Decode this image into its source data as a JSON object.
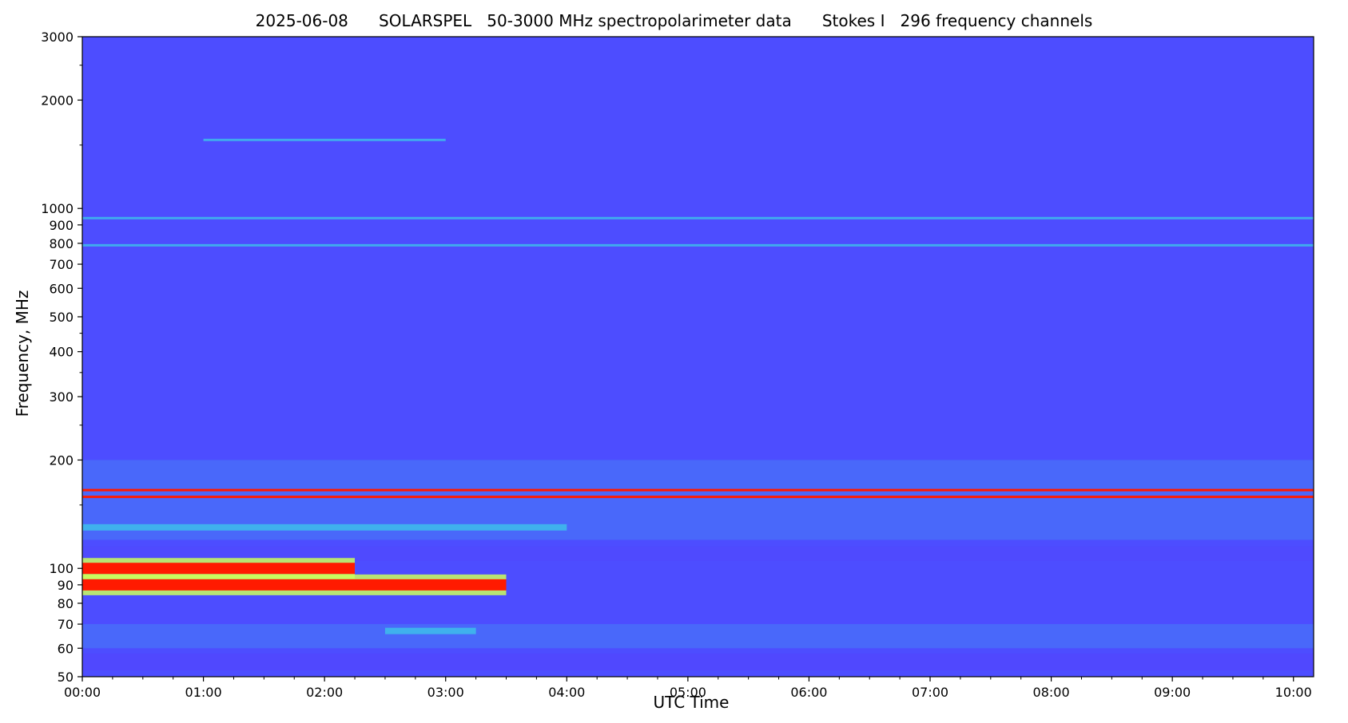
{
  "chart_data": {
    "type": "heatmap",
    "title": "2025-06-08      SOLARSPEL   50-3000 MHz spectropolarimeter data      Stokes I   296 frequency channels",
    "xlabel": "UTC Time",
    "ylabel": "Frequency, MHz",
    "x_ticks": [
      "00:00",
      "01:00",
      "02:00",
      "03:00",
      "04:00",
      "05:00",
      "06:00",
      "07:00",
      "08:00",
      "09:00",
      "10:00"
    ],
    "xlim": [
      "00:00",
      "10:10"
    ],
    "y_scale": "log",
    "ylim": [
      50,
      3000
    ],
    "data_start": "00:00",
    "data_end": "10:10",
    "y_ticks": [
      50,
      60,
      70,
      80,
      90,
      100,
      200,
      300,
      400,
      500,
      600,
      700,
      800,
      900,
      1000,
      2000,
      3000
    ],
    "y_minor_ticks": [
      150,
      250,
      350,
      450,
      1500,
      2500
    ],
    "colormap": "rainbow",
    "colors": {
      "background": "#4d4dff",
      "low": "#5a3dfa",
      "mid": "#3cc9e8",
      "high_mid": "#cbff5a",
      "high": "#ff1a00"
    },
    "features": [
      {
        "description": "persistent narrowband interference",
        "freq_mhz": 165,
        "t_start": "00:00",
        "t_end": "10:10",
        "level": "high"
      },
      {
        "description": "persistent narrowband interference",
        "freq_mhz": 158,
        "t_start": "00:00",
        "t_end": "10:10",
        "level": "high"
      },
      {
        "description": "intense band",
        "freq_mhz": 100,
        "t_start": "00:00",
        "t_end": "02:15",
        "level": "high"
      },
      {
        "description": "intense band",
        "freq_mhz": 90,
        "t_start": "00:00",
        "t_end": "03:30",
        "level": "high"
      },
      {
        "description": "burst patch",
        "freq_mhz": 67,
        "t_start": "02:30",
        "t_end": "03:15",
        "level": "mid"
      },
      {
        "description": "band",
        "freq_mhz": 130,
        "t_start": "00:00",
        "t_end": "04:00",
        "level": "mid"
      },
      {
        "description": "band",
        "freq_mhz": 940,
        "t_start": "00:00",
        "t_end": "10:10",
        "level": "mid"
      },
      {
        "description": "band",
        "freq_mhz": 790,
        "t_start": "00:00",
        "t_end": "10:10",
        "level": "mid"
      },
      {
        "description": "band",
        "freq_mhz": 1550,
        "t_start": "01:00",
        "t_end": "03:00",
        "level": "mid"
      }
    ]
  }
}
